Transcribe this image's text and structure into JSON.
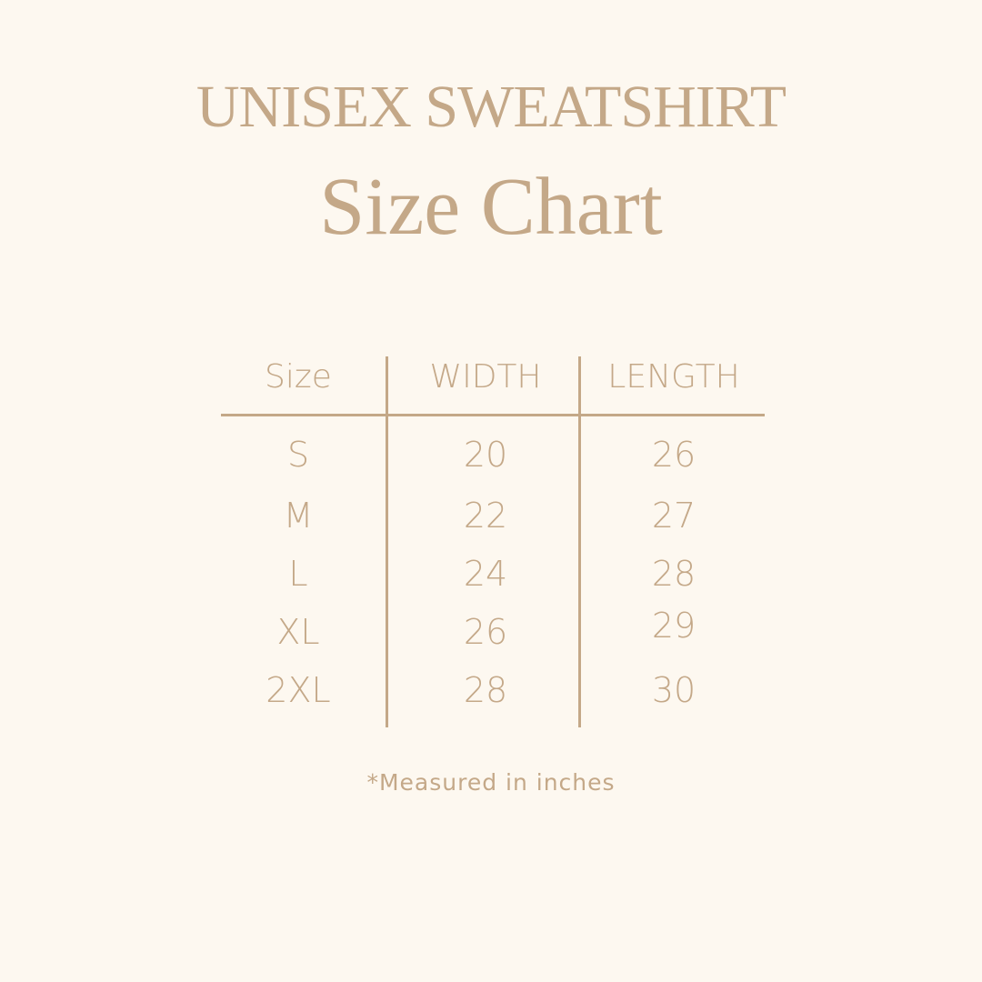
{
  "title": "UNISEX SWEATSHIRT",
  "subtitle": "Size Chart",
  "table": {
    "headers": [
      "Size",
      "WIDTH",
      "LENGTH"
    ],
    "rows": [
      [
        "S",
        "20",
        "26"
      ],
      [
        "M",
        "22",
        "27"
      ],
      [
        "L",
        "24",
        "28"
      ],
      [
        "XL",
        "26",
        "29"
      ],
      [
        "2XL",
        "28",
        "30"
      ]
    ]
  },
  "note": "*Measured in inches",
  "colors": {
    "text": "#c4a888",
    "background": "#fdf8f0"
  }
}
